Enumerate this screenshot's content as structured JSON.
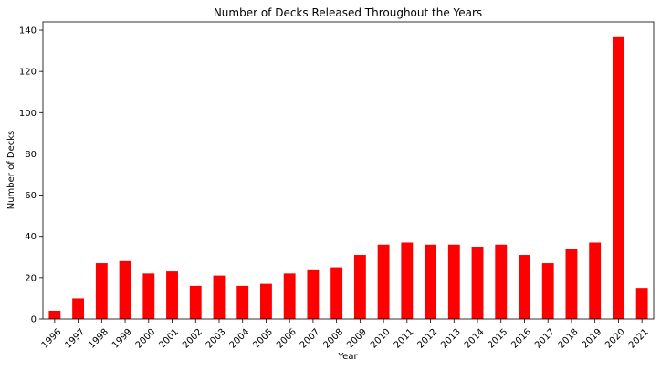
{
  "chart_data": {
    "type": "bar",
    "title": "Number of Decks Released Throughout the Years",
    "xlabel": "Year",
    "ylabel": "Number of Decks",
    "categories": [
      "1996",
      "1997",
      "1998",
      "1999",
      "2000",
      "2001",
      "2002",
      "2003",
      "2004",
      "2005",
      "2006",
      "2007",
      "2008",
      "2009",
      "2010",
      "2011",
      "2012",
      "2013",
      "2014",
      "2015",
      "2016",
      "2017",
      "2018",
      "2019",
      "2020",
      "2021"
    ],
    "values": [
      4,
      10,
      27,
      28,
      22,
      23,
      16,
      21,
      16,
      17,
      22,
      24,
      25,
      31,
      36,
      37,
      36,
      36,
      35,
      36,
      31,
      27,
      34,
      37,
      137,
      15
    ],
    "ylim": [
      0,
      144
    ],
    "yticks": [
      0,
      20,
      40,
      60,
      80,
      100,
      120,
      140
    ],
    "bar_color": "#ff0000",
    "grid": false,
    "legend": "none"
  }
}
